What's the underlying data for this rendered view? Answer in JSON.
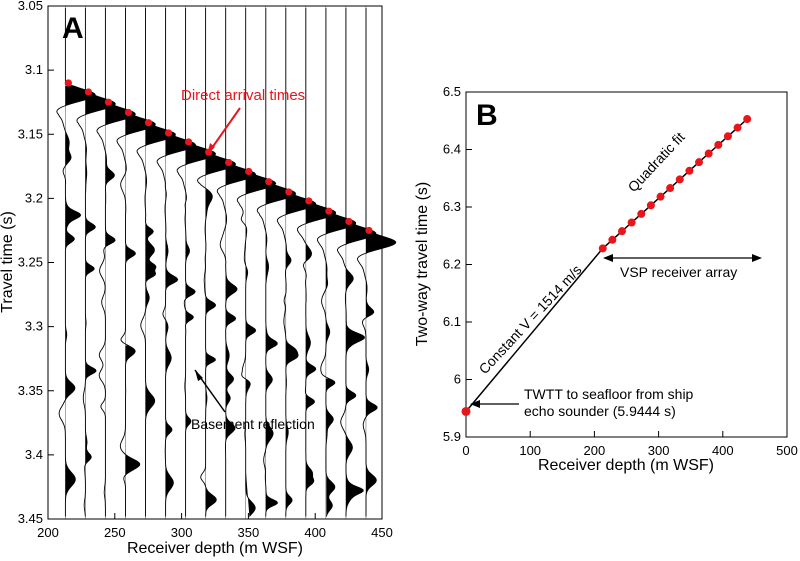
{
  "chart_data": [
    {
      "panel": "A",
      "type": "scatter",
      "xlabel": "Receiver depth (m WSF)",
      "ylabel": "Travel time (s)",
      "xlim": [
        200,
        450
      ],
      "ylim": [
        3.05,
        3.45
      ],
      "y_inverted": true,
      "xticks": [
        "200",
        "250",
        "300",
        "350",
        "400",
        "450"
      ],
      "yticks": [
        "3.05",
        "3.1",
        "3.15",
        "3.2",
        "3.25",
        "3.3",
        "3.35",
        "3.4",
        "3.45"
      ],
      "trace_depths": [
        213,
        228,
        243,
        258,
        273,
        288,
        303,
        318,
        333,
        348,
        363,
        378,
        393,
        408,
        423,
        438
      ],
      "direct_arrival_times": [
        3.11,
        3.117,
        3.125,
        3.133,
        3.141,
        3.149,
        3.156,
        3.164,
        3.172,
        3.179,
        3.187,
        3.195,
        3.202,
        3.21,
        3.218,
        3.225
      ],
      "annotations": {
        "direct": "Direct arrival times",
        "basement": "Basement reflection"
      },
      "colors": {
        "picks": "#e8161b",
        "traces": "#000000"
      }
    },
    {
      "panel": "B",
      "type": "line",
      "xlabel": "Receiver depth (m WSF)",
      "ylabel": "Two-way travel time (s)",
      "xlim": [
        0,
        500
      ],
      "ylim": [
        5.9,
        6.5
      ],
      "xticks": [
        "0",
        "100",
        "200",
        "300",
        "400",
        "500"
      ],
      "yticks": [
        "5.9",
        "6",
        "6.1",
        "6.2",
        "6.3",
        "6.4",
        "6.5"
      ],
      "seafloor_point": {
        "x": 0,
        "y": 5.9444
      },
      "series": [
        {
          "name": "Quadratic fit",
          "x": [
            213,
            228,
            243,
            258,
            273,
            288,
            303,
            318,
            333,
            348,
            363,
            378,
            393,
            408,
            423,
            438
          ],
          "y": [
            6.228,
            6.243,
            6.258,
            6.273,
            6.288,
            6.303,
            6.318,
            6.333,
            6.348,
            6.363,
            6.378,
            6.393,
            6.408,
            6.423,
            6.438,
            6.453
          ]
        }
      ],
      "annotations": {
        "quadratic": "Quadratic fit",
        "constant_v": "Constant V = 1514 m/s",
        "vsp": "VSP receiver array",
        "twtt_line1": "TWTT to seafloor from ship",
        "twtt_line2": "echo sounder (5.9444 s)"
      },
      "colors": {
        "picks": "#e8161b",
        "line": "#000000"
      }
    }
  ],
  "labels": {
    "panel_a": "A",
    "panel_b": "B"
  }
}
